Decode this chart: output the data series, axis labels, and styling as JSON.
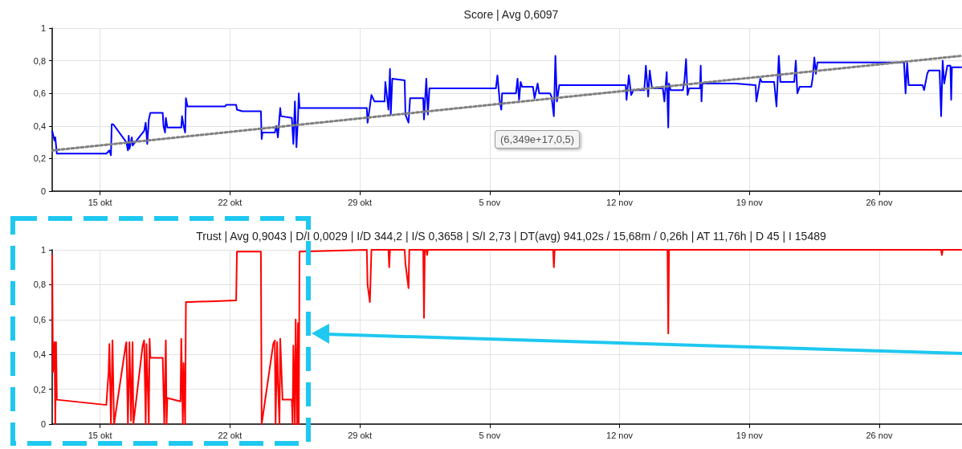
{
  "chart_data": [
    {
      "type": "line",
      "title": "Score | Avg 0,6097",
      "series": [
        {
          "color": "#0000ff",
          "x": [
            "--10-12T10:00",
            "--10-12T13:00",
            "--10-12T14:00",
            "--10-12T16:00",
            "--10-15T08:00",
            "--10-15T12:00",
            "--10-15T14:00",
            "--10-15T15:00",
            "--10-15T17:00",
            "--10-16T10:00",
            "--10-16T12:00",
            "--10-16T13:00",
            "--10-16T14:00",
            "--10-16T17:00",
            "--10-16T18:00",
            "--10-17T09:00",
            "--10-17T11:00",
            "--10-17T13:00",
            "--10-17T15:00",
            "--10-17T17:00",
            "--10-18T09:00",
            "--10-18T10:00",
            "--10-18T12:00",
            "--10-18T13:00",
            "--10-18T15:00",
            "--10-19T09:00",
            "--10-19T10:00",
            "--10-19T12:00",
            "--10-19T14:00",
            "--10-19T15:00",
            "--10-19T17:00",
            "--10-21T18:00",
            "--10-21T19:00",
            "--10-22T08:00",
            "--10-22T09:00",
            "--10-22T16:00",
            "--10-23T16:00",
            "--10-23T17:00",
            "--10-23T18:00",
            "--10-24T10:00",
            "--10-24T12:00",
            "--10-24T14:00",
            "--10-24T17:00",
            "--10-24T18:00",
            "--10-25T08:00",
            "--10-25T10:00",
            "--10-25T12:00",
            "--10-25T14:00",
            "--10-25T16:00",
            "--10-25T17:00",
            "--10-25T18:00",
            "--10-29T09:00",
            "--10-29T10:00",
            "--10-29T13:00",
            "--10-29T15:00",
            "--10-29T19:00",
            "--10-30T08:00",
            "--10-30T09:00",
            "--10-30T13:00",
            "--10-30T15:00",
            "--10-30T16:00",
            "--10-30T18:00",
            "--10-31T10:00",
            "--10-31T11:00",
            "--10-31T15:00",
            "--10-31T17:00",
            "--11-01T10:00",
            "--11-01T11:00",
            "--11-01T14:00",
            "--11-01T16:00",
            "--11-01T18:00",
            "--11-05T08:00",
            "--11-05T10:00",
            "--11-05T13:00",
            "--11-05T15:00",
            "--11-05T16:00",
            "--11-06T10:00",
            "--11-06T12:00",
            "--11-06T14:00",
            "--11-06T16:00",
            "--11-06T18:00",
            "--11-07T08:00",
            "--11-07T10:00",
            "--11-07T14:00",
            "--11-07T16:00",
            "--11-08T06:00",
            "--11-08T08:00",
            "--11-08T11:00",
            "--11-08T13:00",
            "--11-08T15:00",
            "--11-08T18:00",
            "--11-12T08:00",
            "--11-12T09:00",
            "--11-12T12:00",
            "--11-12T15:00",
            "--11-12T18:00",
            "--11-13T08:00",
            "--11-13T10:00",
            "--11-13T13:00",
            "--11-13T15:00",
            "--11-13T18:00",
            "--11-14T08:00",
            "--11-14T10:00",
            "--11-14T13:00",
            "--11-14T15:00",
            "--11-14T16:00",
            "--11-14T18:00",
            "--11-15T10:00",
            "--11-15T12:00",
            "--11-15T14:00",
            "--11-15T16:00",
            "--11-15T18:00",
            "--11-16T08:00",
            "--11-16T09:00",
            "--11-16T10:00",
            "--11-16T11:00",
            "--11-18T06:00",
            "--11-19T08:00",
            "--11-19T09:00",
            "--11-19T14:00",
            "--11-19T16:00",
            "--11-20T08:00",
            "--11-20T11:00",
            "--11-20T14:00",
            "--11-20T16:00",
            "--11-21T10:00",
            "--11-21T12:00",
            "--11-21T14:00",
            "--11-21T17:00",
            "--11-22T08:00",
            "--11-22T10:00",
            "--11-22T12:00",
            "--11-22T14:00",
            "--11-22T16:00",
            "--11-27T08:00",
            "--11-27T10:00",
            "--11-27T12:00",
            "--11-27T14:00",
            "--11-28T08:00",
            "--11-28T10:00",
            "--11-28T14:00",
            "--11-28T16:00",
            "--11-29T06:00",
            "--11-29T08:00",
            "--11-29T10:00",
            "--11-29T12:00",
            "--11-29T16:00",
            "--11-29T20:00",
            "--11-29T21:00",
            "--11-29T22:00",
            "--11-30T10:00"
          ],
          "values": [
            0.37,
            0.31,
            0.33,
            0.23,
            0.23,
            0.25,
            0.22,
            0.41,
            0.41,
            0.3,
            0.25,
            0.34,
            0.26,
            0.33,
            0.28,
            0.37,
            0.42,
            0.29,
            0.44,
            0.48,
            0.48,
            0.4,
            0.36,
            0.45,
            0.39,
            0.39,
            0.46,
            0.4,
            0.36,
            0.57,
            0.52,
            0.52,
            0.53,
            0.53,
            0.5,
            0.49,
            0.49,
            0.32,
            0.36,
            0.36,
            0.4,
            0.33,
            0.51,
            0.46,
            0.45,
            0.29,
            0.55,
            0.27,
            0.45,
            0.6,
            0.51,
            0.51,
            0.42,
            0.52,
            0.59,
            0.55,
            0.55,
            0.67,
            0.5,
            0.75,
            0.47,
            0.69,
            0.68,
            0.47,
            0.42,
            0.57,
            0.57,
            0.44,
            0.69,
            0.47,
            0.63,
            0.63,
            0.71,
            0.55,
            0.5,
            0.6,
            0.6,
            0.69,
            0.56,
            0.67,
            0.64,
            0.64,
            0.57,
            0.66,
            0.6,
            0.6,
            0.58,
            0.46,
            0.83,
            0.55,
            0.65,
            0.65,
            0.56,
            0.71,
            0.59,
            0.62,
            0.62,
            0.77,
            0.58,
            0.74,
            0.63,
            0.63,
            0.55,
            0.73,
            0.39,
            0.66,
            0.62,
            0.62,
            0.68,
            0.81,
            0.59,
            0.63,
            0.63,
            0.77,
            0.55,
            0.66,
            0.66,
            0.65,
            0.55,
            0.69,
            0.67,
            0.67,
            0.52,
            0.83,
            0.67,
            0.67,
            0.8,
            0.6,
            0.64,
            0.64,
            0.7,
            0.82,
            0.72,
            0.79,
            0.79,
            0.6,
            0.79,
            0.65,
            0.65,
            0.62,
            0.72,
            0.74,
            0.74,
            0.46,
            0.8,
            0.66,
            0.77,
            0.77,
            0.56,
            0.76,
            0.76
          ]
        },
        {
          "type": "line",
          "color": "#808080",
          "line_style": "dotted",
          "x": [
            "--10-12T10:00",
            "--11-30T10:00"
          ],
          "values": [
            0.25,
            0.83
          ]
        }
      ],
      "xlim": [
        "--10-12T10:00",
        "--11-30T11:00"
      ],
      "xticks": [
        {
          "value": "--10-15",
          "label": "15 okt"
        },
        {
          "value": "--10-22",
          "label": "22 okt"
        },
        {
          "value": "--10-29",
          "label": "29 okt"
        },
        {
          "value": "--11-05",
          "label": "5 nov"
        },
        {
          "value": "--11-12",
          "label": "12 nov"
        },
        {
          "value": "--11-19",
          "label": "19 nov"
        },
        {
          "value": "--11-26",
          "label": "26 nov"
        }
      ],
      "ylim": [
        0,
        1
      ],
      "yticks": [
        {
          "value": 0,
          "label": "0"
        },
        {
          "value": 0.2,
          "label": "0,2"
        },
        {
          "value": 0.4,
          "label": "0,4"
        },
        {
          "value": 0.6,
          "label": "0,6"
        },
        {
          "value": 0.8,
          "label": "0,8"
        },
        {
          "value": 1,
          "label": "1"
        }
      ],
      "grid": true,
      "annotations": [
        "(6,349e+17,0,5)"
      ]
    },
    {
      "type": "line",
      "title": "Trust | Avg 0,9043 | D/I 0,0029 | I/D 344,2 | I/S 0,3658 | S/I 2,73 | DT(avg) 941,02s / 15,68m / 0,26h | AT 11,76h | D 45 | I 15489",
      "series": [
        {
          "color": "#ff0000",
          "x": [
            "--10-12T10:00",
            "--10-12T11:00",
            "--10-12T13:00",
            "--10-12T14:00",
            "--10-12T15:00",
            "--10-12T16:00",
            "--10-15T08:00",
            "--10-15T11:00",
            "--10-15T12:00",
            "--10-15T14:00",
            "--10-15T16:00",
            "--10-15T18:00",
            "--10-16T09:00",
            "--10-16T10:00",
            "--10-16T12:00",
            "--10-16T14:00",
            "--10-16T16:00",
            "--10-16T18:00",
            "--10-16T19:00",
            "--10-17T07:00",
            "--10-17T09:00",
            "--10-17T11:00",
            "--10-17T12:00",
            "--10-17T15:00",
            "--10-17T16:00",
            "--10-17T17:00",
            "--10-18T09:00",
            "--10-18T11:00",
            "--10-18T13:00",
            "--10-18T14:00",
            "--10-18T15:00",
            "--10-19T08:00",
            "--10-19T09:00",
            "--10-19T11:00",
            "--10-19T12:00",
            "--10-19T14:00",
            "--10-19T15:00",
            "--10-19T18:00",
            "--10-22T08:00",
            "--10-22T09:00",
            "--10-23T16:00",
            "--10-23T17:00",
            "--10-24T08:00",
            "--10-24T10:00",
            "--10-24T11:00",
            "--10-24T13:00",
            "--10-24T14:00",
            "--10-24T16:00",
            "--10-24T17:00",
            "--10-24T20:00",
            "--10-25T08:00",
            "--10-25T09:00",
            "--10-25T10:00",
            "--10-25T12:00",
            "--10-25T13:00",
            "--10-25T15:00",
            "--10-25T16:00",
            "--10-25T17:00",
            "--10-25T18:00",
            "--10-29T09:00",
            "--10-29T10:00",
            "--10-29T13:00",
            "--10-29T15:00",
            "--10-30T13:00",
            "--10-30T14:00",
            "--10-30T15:00",
            "--10-31T10:00",
            "--10-31T11:00",
            "--10-31T15:00",
            "--10-31T16:00",
            "--11-01T10:00",
            "--11-01T11:00",
            "--11-01T12:00",
            "--11-01T14:00",
            "--11-01T15:00",
            "--11-01T16:00",
            "--11-08T10:00",
            "--11-08T11:00",
            "--11-08T12:00",
            "--11-14T14:00",
            "--11-14T15:00",
            "--11-14T16:00",
            "--11-29T08:00",
            "--11-29T09:00",
            "--11-29T10:00",
            "--11-30T10:00"
          ],
          "values": [
            0.97,
            0.3,
            0.47,
            0.0,
            0.47,
            0.14,
            0.11,
            0.3,
            0.46,
            0.0,
            0.48,
            0.0,
            0.45,
            0.47,
            0.0,
            0.47,
            0.02,
            0.47,
            0.0,
            0.45,
            0.48,
            0.0,
            0.46,
            0.0,
            0.49,
            0.38,
            0.38,
            0.0,
            0.48,
            0.0,
            0.15,
            0.13,
            0.49,
            0.0,
            0.35,
            0.0,
            0.7,
            0.7,
            0.71,
            0.99,
            0.99,
            0.0,
            0.46,
            0.48,
            0.0,
            0.47,
            0.25,
            0.0,
            0.49,
            0.14,
            0.14,
            0.0,
            0.45,
            0.0,
            0.6,
            0.0,
            0.58,
            0.0,
            0.99,
            1.0,
            0.8,
            0.7,
            1.0,
            1.0,
            0.9,
            1.0,
            1.0,
            0.92,
            0.78,
            1.0,
            1.0,
            0.61,
            1.0,
            1.0,
            0.97,
            1.0,
            1.0,
            0.9,
            1.0,
            1.0,
            0.52,
            1.0,
            1.0,
            0.97,
            1.0,
            1.0
          ]
        }
      ],
      "xlim": [
        "--10-12T10:00",
        "--11-30T11:00"
      ],
      "xticks": [
        {
          "value": "--10-15",
          "label": "15 okt"
        },
        {
          "value": "--10-22",
          "label": "22 okt"
        },
        {
          "value": "--10-29",
          "label": "29 okt"
        },
        {
          "value": "--11-05",
          "label": "5 nov"
        },
        {
          "value": "--11-12",
          "label": "12 nov"
        },
        {
          "value": "--11-19",
          "label": "19 nov"
        },
        {
          "value": "--11-26",
          "label": "26 nov"
        }
      ],
      "ylim": [
        0,
        1
      ],
      "yticks": [
        0,
        {
          "value": 0.2,
          "label": "0,2"
        },
        {
          "value": 0.4,
          "label": "0,4"
        },
        {
          "value": 0.6,
          "label": "0,6"
        },
        {
          "value": 0.8,
          "label": "0,8"
        },
        1
      ],
      "grid": true
    }
  ]
}
